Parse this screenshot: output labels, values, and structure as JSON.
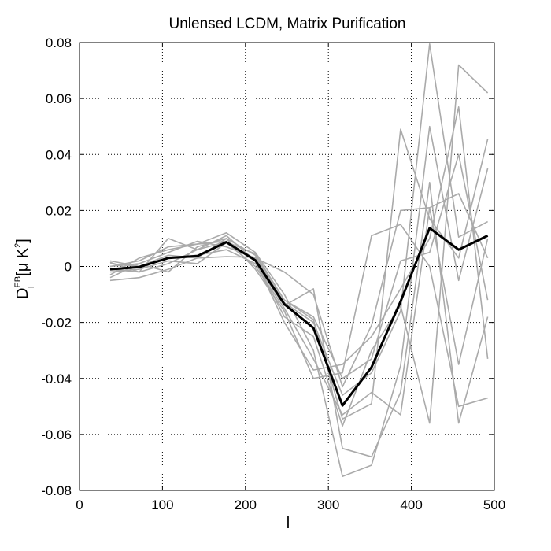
{
  "chart_data": {
    "type": "line",
    "title": "Unlensed LCDM, Matrix Purification",
    "xlabel": "l",
    "ylabel": {
      "base": "D",
      "subscript": "l",
      "superscript": "EB",
      "unit_open": "[μ K",
      "unit_power": "2",
      "unit_close": "]"
    },
    "xlim": [
      0,
      500
    ],
    "ylim": [
      -0.08,
      0.08
    ],
    "x_ticks": [
      0,
      100,
      200,
      300,
      400,
      500
    ],
    "y_ticks": [
      -0.08,
      -0.06,
      -0.04,
      -0.02,
      0,
      0.02,
      0.04,
      0.06,
      0.08
    ],
    "grid": true,
    "x": [
      37,
      72,
      107,
      142,
      177,
      212,
      247,
      282,
      317,
      352,
      387,
      422,
      457,
      492
    ],
    "mean_series": {
      "color": "#000000",
      "values": [
        -0.001,
        -0.0002,
        0.003,
        0.0037,
        0.0087,
        0.0022,
        -0.0135,
        -0.022,
        -0.0497,
        -0.036,
        -0.0125,
        0.0137,
        0.006,
        0.011
      ]
    },
    "realization_color": "#aaaaaa",
    "realizations": [
      [
        0.0015,
        -0.002,
        0.01,
        0.006,
        0.0088,
        0.0045,
        -0.012,
        -0.019,
        -0.0545,
        -0.049,
        0.049,
        0.017,
        0.003,
        0.0455
      ],
      [
        -0.005,
        -0.004,
        -0.001,
        0.003,
        0.0035,
        0.0033,
        -0.013,
        -0.02,
        -0.046,
        -0.038,
        -0.016,
        0.0795,
        0.0105,
        0.016
      ],
      [
        0.0,
        0.002,
        0.007,
        0.008,
        0.012,
        0.005,
        -0.01,
        -0.03,
        -0.075,
        -0.071,
        -0.0355,
        0.05,
        -0.005,
        0.035
      ],
      [
        -0.003,
        0.003,
        0.006,
        0.008,
        0.009,
        0.002,
        -0.018,
        -0.025,
        -0.057,
        -0.03,
        -0.014,
        -0.056,
        0.072,
        0.062
      ],
      [
        0.001,
        0.0,
        0.004,
        0.003,
        0.01,
        -0.001,
        -0.016,
        -0.04,
        -0.038,
        0.011,
        0.015,
        0.0,
        -0.05,
        -0.047
      ],
      [
        -0.002,
        -0.001,
        0.002,
        0.001,
        0.0085,
        0.0,
        -0.015,
        -0.033,
        -0.053,
        -0.045,
        -0.053,
        0.021,
        0.026,
        0.003
      ],
      [
        0.0,
        0.001,
        0.005,
        0.009,
        0.007,
        0.003,
        -0.002,
        -0.01,
        -0.043,
        -0.021,
        0.02,
        0.021,
        -0.035,
        0.01
      ],
      [
        -0.001,
        -0.002,
        0.001,
        0.006,
        0.011,
        0.002,
        -0.02,
        -0.037,
        -0.035,
        -0.025,
        -0.008,
        0.01,
        0.057,
        -0.033
      ],
      [
        0.002,
        0.0,
        0.003,
        0.004,
        0.006,
        0.001,
        -0.014,
        -0.008,
        -0.065,
        -0.068,
        -0.045,
        0.03,
        -0.056,
        -0.018
      ],
      [
        -0.004,
        0.001,
        -0.002,
        0.007,
        0.01,
        0.004,
        -0.012,
        -0.018,
        -0.04,
        -0.033,
        0.002,
        0.005,
        0.04,
        -0.012
      ]
    ]
  }
}
